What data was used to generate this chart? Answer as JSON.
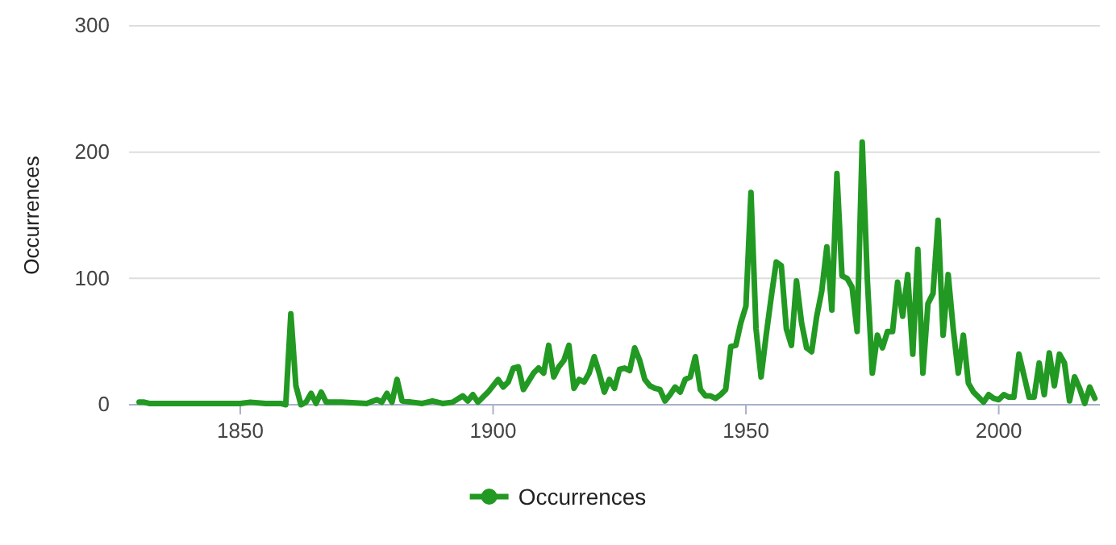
{
  "chart_data": {
    "type": "line",
    "ylabel": "Occurrences",
    "x": [
      1830,
      1831,
      1832,
      1835,
      1845,
      1850,
      1852,
      1855,
      1858,
      1859,
      1860,
      1861,
      1862,
      1863,
      1864,
      1865,
      1866,
      1867,
      1870,
      1875,
      1877,
      1878,
      1879,
      1880,
      1881,
      1882,
      1884,
      1886,
      1888,
      1890,
      1892,
      1894,
      1895,
      1896,
      1897,
      1899,
      1901,
      1902,
      1903,
      1904,
      1905,
      1906,
      1908,
      1909,
      1910,
      1911,
      1912,
      1913,
      1914,
      1915,
      1916,
      1917,
      1918,
      1919,
      1920,
      1921,
      1922,
      1923,
      1924,
      1925,
      1926,
      1927,
      1928,
      1929,
      1930,
      1931,
      1932,
      1933,
      1934,
      1935,
      1936,
      1937,
      1938,
      1939,
      1940,
      1941,
      1942,
      1943,
      1944,
      1945,
      1946,
      1947,
      1948,
      1949,
      1950,
      1951,
      1952,
      1953,
      1954,
      1955,
      1956,
      1957,
      1958,
      1959,
      1960,
      1961,
      1962,
      1963,
      1964,
      1965,
      1966,
      1967,
      1968,
      1969,
      1970,
      1971,
      1972,
      1973,
      1974,
      1975,
      1976,
      1977,
      1978,
      1979,
      1980,
      1981,
      1982,
      1983,
      1984,
      1985,
      1986,
      1987,
      1988,
      1989,
      1990,
      1991,
      1992,
      1993,
      1994,
      1995,
      1996,
      1997,
      1998,
      1999,
      2000,
      2001,
      2002,
      2003,
      2004,
      2005,
      2006,
      2007,
      2008,
      2009,
      2010,
      2011,
      2012,
      2013,
      2014,
      2015,
      2016,
      2017,
      2018,
      2019
    ],
    "series": [
      {
        "name": "Occurrences",
        "color": "#229922",
        "values": [
          2,
          2,
          1,
          1,
          1,
          1,
          2,
          1,
          1,
          0,
          72,
          15,
          0,
          2,
          9,
          1,
          10,
          2,
          2,
          1,
          4,
          2,
          9,
          2,
          20,
          3,
          2,
          1,
          3,
          1,
          2,
          7,
          3,
          8,
          2,
          10,
          20,
          14,
          18,
          29,
          30,
          12,
          25,
          29,
          25,
          47,
          22,
          30,
          35,
          47,
          13,
          20,
          18,
          25,
          38,
          25,
          10,
          20,
          13,
          28,
          29,
          27,
          45,
          35,
          20,
          15,
          13,
          12,
          3,
          8,
          14,
          10,
          20,
          22,
          38,
          12,
          7,
          7,
          5,
          8,
          12,
          46,
          47,
          65,
          78,
          168,
          60,
          22,
          55,
          85,
          113,
          110,
          60,
          47,
          98,
          65,
          45,
          42,
          70,
          90,
          125,
          75,
          183,
          102,
          100,
          93,
          58,
          208,
          100,
          25,
          55,
          45,
          58,
          58,
          97,
          70,
          103,
          40,
          123,
          25,
          80,
          88,
          146,
          55,
          103,
          60,
          25,
          55,
          17,
          10,
          6,
          2,
          8,
          5,
          4,
          8,
          6,
          6,
          40,
          23,
          6,
          6,
          33,
          8,
          41,
          15,
          40,
          33,
          3,
          22,
          13,
          1,
          14,
          5
        ]
      }
    ],
    "xlim": [
      1828,
      2020
    ],
    "xticks": [
      1850,
      1900,
      1950,
      2000
    ],
    "ylim": [
      0,
      300
    ],
    "yticks": [
      0,
      100,
      200,
      300
    ],
    "grid": "y",
    "legend": "bottom"
  }
}
